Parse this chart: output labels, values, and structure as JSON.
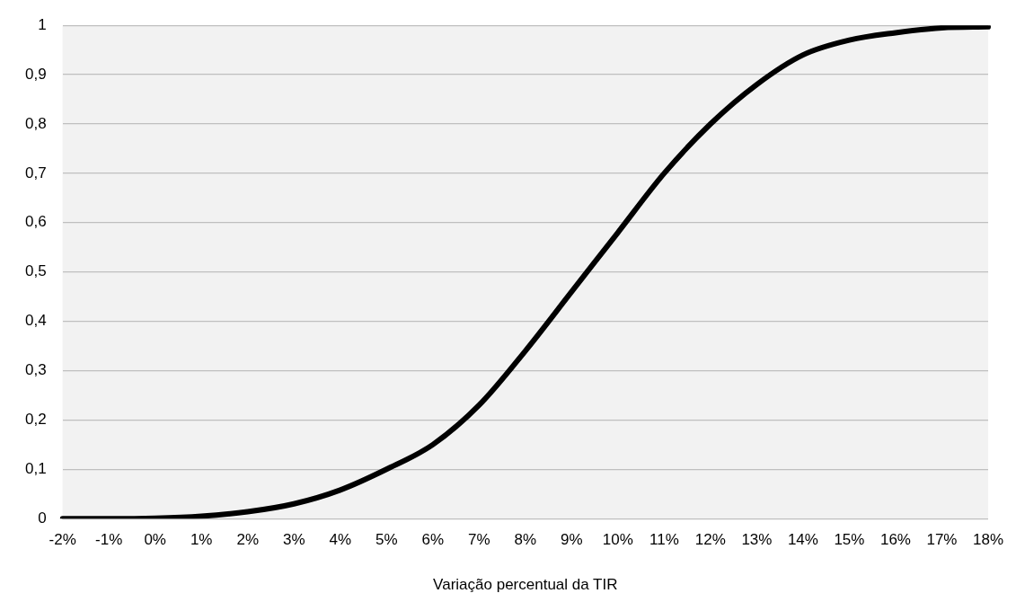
{
  "chart_data": {
    "type": "line",
    "xlabel": "Variação percentual da TIR",
    "categories": [
      "-2%",
      "-1%",
      "0%",
      "1%",
      "2%",
      "3%",
      "4%",
      "5%",
      "6%",
      "7%",
      "8%",
      "9%",
      "10%",
      "11%",
      "12%",
      "13%",
      "14%",
      "15%",
      "16%",
      "17%",
      "18%"
    ],
    "series": [
      {
        "color": "#000000",
        "values": [
          0,
          0,
          0.001,
          0.005,
          0.014,
          0.03,
          0.058,
          0.1,
          0.15,
          0.23,
          0.34,
          0.46,
          0.58,
          0.7,
          0.8,
          0.88,
          0.94,
          0.97,
          0.985,
          0.995,
          0.997
        ]
      }
    ],
    "ylim": [
      0,
      1
    ],
    "yticks": [
      0,
      {
        "value": 0.1,
        "label": "0,1"
      },
      {
        "value": 0.2,
        "label": "0,2"
      },
      {
        "value": 0.3,
        "label": "0,3"
      },
      {
        "value": 0.4,
        "label": "0,4"
      },
      {
        "value": 0.5,
        "label": "0,5"
      },
      {
        "value": 0.6,
        "label": "0,6"
      },
      {
        "value": 0.7,
        "label": "0,7"
      },
      {
        "value": 0.8,
        "label": "0,8"
      },
      {
        "value": 0.9,
        "label": "0,9"
      },
      1
    ],
    "grid": "y",
    "legend": false,
    "marker": "none",
    "line_style": "solid"
  }
}
